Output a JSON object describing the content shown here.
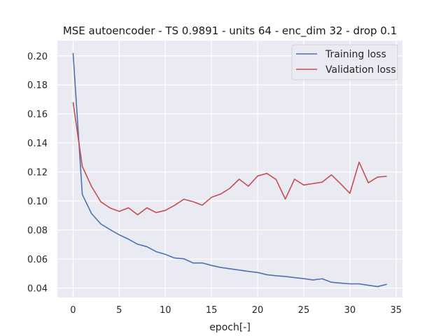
{
  "chart_data": {
    "type": "line",
    "title": "MSE autoencoder - TS 0.9891 - units 64 - enc_dim 32 - drop 0.1",
    "xlabel": "epoch[-]",
    "ylabel": "",
    "xlim": [
      -1.7,
      35.7
    ],
    "ylim": [
      0.0335,
      0.2105
    ],
    "x_ticks": [
      0,
      5,
      10,
      15,
      20,
      25,
      30,
      35
    ],
    "x_tick_labels": [
      "0",
      "5",
      "10",
      "15",
      "20",
      "25",
      "30",
      "35"
    ],
    "y_ticks": [
      0.04,
      0.06,
      0.08,
      0.1,
      0.12,
      0.14,
      0.16,
      0.18,
      0.2
    ],
    "y_tick_labels": [
      "0.04",
      "0.06",
      "0.08",
      "0.10",
      "0.12",
      "0.14",
      "0.16",
      "0.18",
      "0.20"
    ],
    "grid": true,
    "legend_position": "top-right",
    "x": [
      0,
      1,
      2,
      3,
      4,
      5,
      6,
      7,
      8,
      9,
      10,
      11,
      12,
      13,
      14,
      15,
      16,
      17,
      18,
      19,
      20,
      21,
      22,
      23,
      24,
      25,
      26,
      27,
      28,
      29,
      30,
      31,
      32,
      33,
      34
    ],
    "series": [
      {
        "name": "Training loss",
        "color": "#4c72b0",
        "values": [
          0.202,
          0.1045,
          0.0913,
          0.0842,
          0.0803,
          0.0767,
          0.0737,
          0.0702,
          0.0685,
          0.0651,
          0.0632,
          0.0607,
          0.0602,
          0.0573,
          0.0573,
          0.0556,
          0.0542,
          0.0533,
          0.0524,
          0.0515,
          0.0507,
          0.0492,
          0.0485,
          0.048,
          0.0472,
          0.0465,
          0.0456,
          0.0464,
          0.044,
          0.0434,
          0.0429,
          0.0429,
          0.0419,
          0.041,
          0.0426
        ]
      },
      {
        "name": "Validation loss",
        "color": "#c44e52",
        "values": [
          0.168,
          0.1238,
          0.11,
          0.0995,
          0.0952,
          0.0928,
          0.0953,
          0.0905,
          0.0953,
          0.092,
          0.0935,
          0.097,
          0.1012,
          0.0995,
          0.0971,
          0.1025,
          0.1048,
          0.1088,
          0.115,
          0.1102,
          0.1172,
          0.119,
          0.1148,
          0.1013,
          0.115,
          0.111,
          0.112,
          0.113,
          0.118,
          0.1118,
          0.1053,
          0.1268,
          0.1125,
          0.1165,
          0.117
        ]
      }
    ]
  }
}
